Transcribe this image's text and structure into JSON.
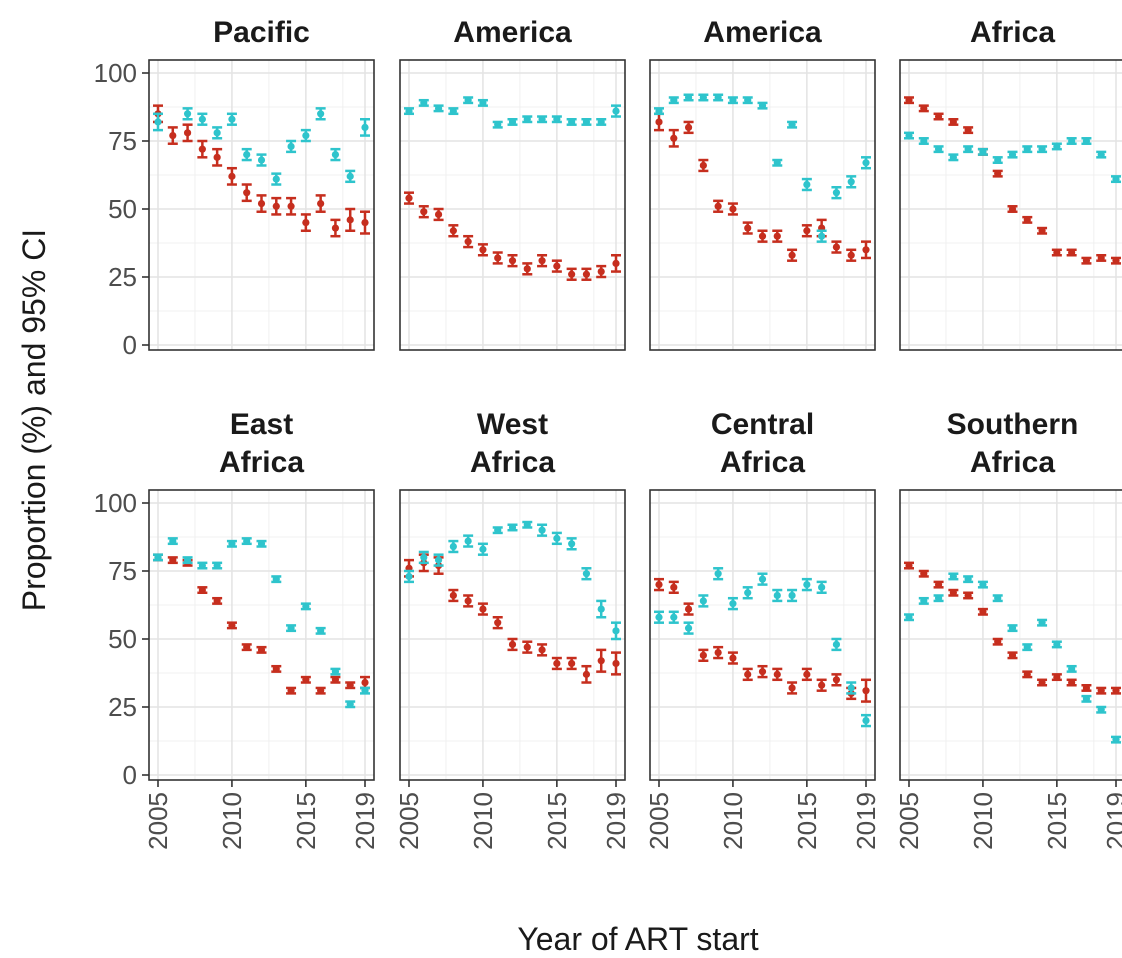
{
  "chart_data": {
    "type": "scatter",
    "xlabel": "Year of ART start",
    "ylabel": "Proportion (%) and 95% CI",
    "xlim": [
      2005,
      2019
    ],
    "ylim": [
      0,
      100
    ],
    "x_ticks": [
      2005,
      2010,
      2015,
      2019
    ],
    "y_ticks": [
      0,
      25,
      50,
      75,
      100
    ],
    "grid": true,
    "legend": "none",
    "colors": {
      "red": "#c62e1e",
      "cyan": "#2ec4cc"
    },
    "panels": [
      {
        "title_lines": [
          "Pacific"
        ],
        "series": [
          {
            "color": "red",
            "x": [
              2005,
              2006,
              2007,
              2008,
              2009,
              2010,
              2011,
              2012,
              2013,
              2014,
              2015,
              2016,
              2017,
              2018,
              2019
            ],
            "y": [
              85,
              77,
              78,
              72,
              69,
              62,
              56,
              52,
              51,
              51,
              45,
              52,
              43,
              46,
              45
            ],
            "ci": [
              3,
              3,
              3,
              3,
              3,
              3,
              3,
              3,
              3,
              3,
              3,
              3,
              3,
              4,
              4
            ]
          },
          {
            "color": "cyan",
            "x": [
              2005,
              2007,
              2008,
              2009,
              2010,
              2011,
              2012,
              2013,
              2014,
              2015,
              2016,
              2017,
              2018,
              2019
            ],
            "y": [
              82,
              85,
              83,
              78,
              83,
              70,
              68,
              61,
              73,
              77,
              85,
              70,
              62,
              80
            ],
            "ci": [
              3,
              2,
              2,
              2,
              2,
              2,
              2,
              2,
              2,
              2,
              2,
              2,
              2,
              3
            ]
          }
        ]
      },
      {
        "title_lines": [
          "America"
        ],
        "series": [
          {
            "color": "red",
            "x": [
              2005,
              2006,
              2007,
              2008,
              2009,
              2010,
              2011,
              2012,
              2013,
              2014,
              2015,
              2016,
              2017,
              2018,
              2019
            ],
            "y": [
              54,
              49,
              48,
              42,
              38,
              35,
              32,
              31,
              28,
              31,
              29,
              26,
              26,
              27,
              30
            ],
            "ci": [
              2,
              2,
              2,
              2,
              2,
              2,
              2,
              2,
              2,
              2,
              2,
              2,
              2,
              2,
              3
            ]
          },
          {
            "color": "cyan",
            "x": [
              2005,
              2006,
              2007,
              2008,
              2009,
              2010,
              2011,
              2012,
              2013,
              2014,
              2015,
              2016,
              2017,
              2018,
              2019
            ],
            "y": [
              86,
              89,
              87,
              86,
              90,
              89,
              81,
              82,
              83,
              83,
              83,
              82,
              82,
              82,
              86
            ],
            "ci": [
              1,
              1,
              1,
              1,
              1,
              1,
              1,
              1,
              1,
              1,
              1,
              1,
              1,
              1,
              2
            ]
          }
        ]
      },
      {
        "title_lines": [
          "America"
        ],
        "series": [
          {
            "color": "red",
            "x": [
              2005,
              2006,
              2007,
              2008,
              2009,
              2010,
              2011,
              2012,
              2013,
              2014,
              2015,
              2016,
              2017,
              2018,
              2019
            ],
            "y": [
              82,
              76,
              80,
              66,
              51,
              50,
              43,
              40,
              40,
              33,
              42,
              43,
              36,
              33,
              35
            ],
            "ci": [
              3,
              3,
              2,
              2,
              2,
              2,
              2,
              2,
              2,
              2,
              2,
              3,
              2,
              2,
              3
            ]
          },
          {
            "color": "cyan",
            "x": [
              2005,
              2006,
              2007,
              2008,
              2009,
              2010,
              2011,
              2012,
              2013,
              2014,
              2015,
              2016,
              2017,
              2018,
              2019
            ],
            "y": [
              86,
              90,
              91,
              91,
              91,
              90,
              90,
              88,
              67,
              81,
              59,
              40,
              56,
              60,
              67
            ],
            "ci": [
              1,
              1,
              1,
              1,
              1,
              1,
              1,
              1,
              1,
              1,
              2,
              2,
              2,
              2,
              2
            ]
          }
        ]
      },
      {
        "title_lines": [
          "Africa"
        ],
        "series": [
          {
            "color": "red",
            "x": [
              2005,
              2006,
              2007,
              2008,
              2009,
              2010,
              2011,
              2012,
              2013,
              2014,
              2015,
              2016,
              2017,
              2018,
              2019
            ],
            "y": [
              90,
              87,
              84,
              82,
              79,
              71,
              63,
              50,
              46,
              42,
              34,
              34,
              31,
              32,
              31
            ],
            "ci": [
              1,
              1,
              1,
              1,
              1,
              1,
              1,
              1,
              1,
              1,
              1,
              1,
              1,
              1,
              1
            ]
          },
          {
            "color": "cyan",
            "x": [
              2005,
              2006,
              2007,
              2008,
              2009,
              2010,
              2011,
              2012,
              2013,
              2014,
              2015,
              2016,
              2017,
              2018,
              2019
            ],
            "y": [
              77,
              75,
              72,
              69,
              72,
              71,
              68,
              70,
              72,
              72,
              73,
              75,
              75,
              70,
              61
            ],
            "ci": [
              1,
              1,
              1,
              1,
              1,
              1,
              1,
              1,
              1,
              1,
              1,
              1,
              1,
              1,
              1
            ]
          }
        ]
      },
      {
        "title_lines": [
          "East",
          "Africa"
        ],
        "series": [
          {
            "color": "red",
            "x": [
              2005,
              2006,
              2007,
              2008,
              2009,
              2010,
              2011,
              2012,
              2013,
              2014,
              2015,
              2016,
              2017,
              2018,
              2019
            ],
            "y": [
              80,
              79,
              78,
              68,
              64,
              55,
              47,
              46,
              39,
              31,
              35,
              31,
              35,
              33,
              34
            ],
            "ci": [
              1,
              1,
              1,
              1,
              1,
              1,
              1,
              1,
              1,
              1,
              1,
              1,
              1,
              1,
              2
            ]
          },
          {
            "color": "cyan",
            "x": [
              2005,
              2006,
              2007,
              2008,
              2009,
              2010,
              2011,
              2012,
              2013,
              2014,
              2015,
              2016,
              2017,
              2018,
              2019
            ],
            "y": [
              80,
              86,
              79,
              77,
              77,
              85,
              86,
              85,
              72,
              54,
              62,
              53,
              38,
              26,
              31
            ],
            "ci": [
              1,
              1,
              1,
              1,
              1,
              1,
              1,
              1,
              1,
              1,
              1,
              1,
              1,
              1,
              1
            ]
          }
        ]
      },
      {
        "title_lines": [
          "West",
          "Africa"
        ],
        "series": [
          {
            "color": "red",
            "x": [
              2005,
              2006,
              2007,
              2008,
              2009,
              2010,
              2011,
              2012,
              2013,
              2014,
              2015,
              2016,
              2017,
              2018,
              2019
            ],
            "y": [
              76,
              78,
              77,
              66,
              64,
              61,
              56,
              48,
              47,
              46,
              41,
              41,
              37,
              42,
              41
            ],
            "ci": [
              3,
              3,
              3,
              2,
              2,
              2,
              2,
              2,
              2,
              2,
              2,
              2,
              3,
              4,
              4
            ]
          },
          {
            "color": "cyan",
            "x": [
              2005,
              2006,
              2007,
              2008,
              2009,
              2010,
              2011,
              2012,
              2013,
              2014,
              2015,
              2016,
              2017,
              2018,
              2019
            ],
            "y": [
              73,
              80,
              79,
              84,
              86,
              83,
              90,
              91,
              92,
              90,
              87,
              85,
              74,
              61,
              53
            ],
            "ci": [
              2,
              2,
              2,
              2,
              2,
              2,
              1,
              1,
              1,
              2,
              2,
              2,
              2,
              3,
              3
            ]
          }
        ]
      },
      {
        "title_lines": [
          "Central",
          "Africa"
        ],
        "series": [
          {
            "color": "red",
            "x": [
              2005,
              2006,
              2007,
              2008,
              2009,
              2010,
              2011,
              2012,
              2013,
              2014,
              2015,
              2016,
              2017,
              2018,
              2019
            ],
            "y": [
              70,
              69,
              61,
              44,
              45,
              43,
              37,
              38,
              37,
              32,
              37,
              33,
              35,
              30,
              31
            ],
            "ci": [
              2,
              2,
              2,
              2,
              2,
              2,
              2,
              2,
              2,
              2,
              2,
              2,
              2,
              2,
              4
            ]
          },
          {
            "color": "cyan",
            "x": [
              2005,
              2006,
              2007,
              2008,
              2009,
              2010,
              2011,
              2012,
              2013,
              2014,
              2015,
              2016,
              2017,
              2018,
              2019
            ],
            "y": [
              58,
              58,
              54,
              64,
              74,
              63,
              67,
              72,
              66,
              66,
              70,
              69,
              48,
              32,
              20
            ],
            "ci": [
              2,
              2,
              2,
              2,
              2,
              2,
              2,
              2,
              2,
              2,
              2,
              2,
              2,
              2,
              2
            ]
          }
        ]
      },
      {
        "title_lines": [
          "Southern",
          "Africa"
        ],
        "series": [
          {
            "color": "red",
            "x": [
              2005,
              2006,
              2007,
              2008,
              2009,
              2010,
              2011,
              2012,
              2013,
              2014,
              2015,
              2016,
              2017,
              2018,
              2019
            ],
            "y": [
              77,
              74,
              70,
              67,
              66,
              60,
              49,
              44,
              37,
              34,
              36,
              34,
              32,
              31,
              31
            ],
            "ci": [
              1,
              1,
              1,
              1,
              1,
              1,
              1,
              1,
              1,
              1,
              1,
              1,
              1,
              1,
              1
            ]
          },
          {
            "color": "cyan",
            "x": [
              2005,
              2006,
              2007,
              2008,
              2009,
              2010,
              2011,
              2012,
              2013,
              2014,
              2015,
              2016,
              2017,
              2018,
              2019
            ],
            "y": [
              58,
              64,
              65,
              73,
              72,
              70,
              65,
              54,
              47,
              56,
              48,
              39,
              28,
              24,
              13
            ],
            "ci": [
              1,
              1,
              1,
              1,
              1,
              1,
              1,
              1,
              1,
              1,
              1,
              1,
              1,
              1,
              1
            ]
          }
        ]
      }
    ]
  }
}
